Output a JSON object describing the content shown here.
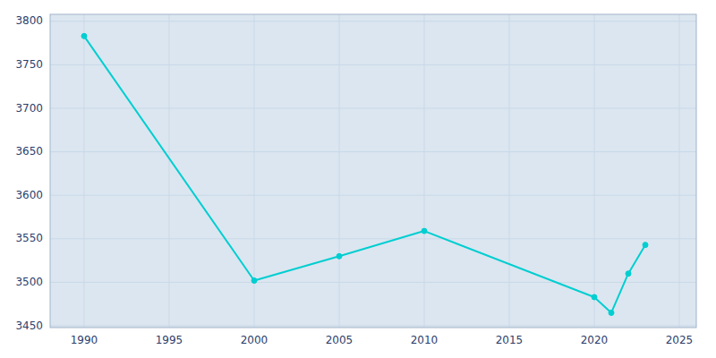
{
  "chart_data": {
    "type": "line",
    "x": [
      1990,
      2000,
      2005,
      2010,
      2020,
      2021,
      2022,
      2023
    ],
    "values": [
      3783,
      3502,
      3530,
      3559,
      3483,
      3465,
      3510,
      3543
    ],
    "color": "#00CED1",
    "marker": "circle",
    "xlim": [
      1988,
      2026
    ],
    "ylim": [
      3448,
      3808
    ],
    "xticks": [
      1990,
      1995,
      2000,
      2005,
      2010,
      2015,
      2020,
      2025
    ],
    "yticks": [
      3450,
      3500,
      3550,
      3600,
      3650,
      3700,
      3750,
      3800
    ],
    "grid": true
  }
}
